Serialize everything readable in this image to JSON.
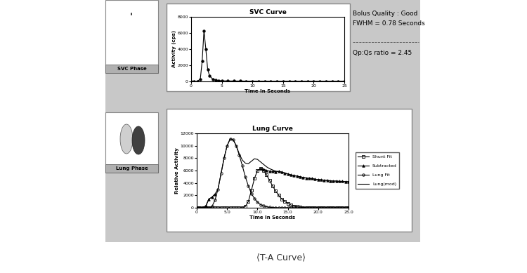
{
  "chart_data": [
    {
      "type": "line",
      "title": "SVC Curve",
      "x_label": "Time In Seconds",
      "y_label": "Activity (cps)",
      "x": [
        0,
        0.5,
        1,
        1.5,
        1.8,
        2.1,
        2.4,
        2.7,
        3,
        3.5,
        4,
        4.5,
        5,
        6,
        7,
        8,
        9,
        10,
        11,
        12,
        13,
        14,
        15,
        16,
        17,
        18,
        19,
        20,
        21,
        22,
        23,
        24,
        25
      ],
      "xlim": [
        0,
        25
      ],
      "xticks": [
        0,
        5,
        10,
        15,
        20,
        25
      ],
      "ylim": [
        0,
        8000
      ],
      "yticks": [
        0,
        2000,
        4000,
        6000,
        8000
      ],
      "grid": false,
      "series": [
        {
          "color": "#000000",
          "marker": "filled_circle",
          "line_style": "solid",
          "values": [
            0,
            0,
            0,
            300,
            2500,
            6300,
            4000,
            1500,
            700,
            300,
            150,
            100,
            80,
            60,
            50,
            50,
            40,
            40,
            40,
            40,
            30,
            30,
            30,
            30,
            30,
            30,
            30,
            30,
            30,
            30,
            30,
            30,
            30
          ]
        }
      ]
    },
    {
      "type": "line",
      "title": "Lung Curve",
      "x_label": "Time In Seconds",
      "y_label": "Relative Activity",
      "x": [
        0,
        0.5,
        1.0,
        1.5,
        2.0,
        2.5,
        3.0,
        3.5,
        4.0,
        4.5,
        5.0,
        5.5,
        6.0,
        6.5,
        7.0,
        7.5,
        8.0,
        8.5,
        9.0,
        9.5,
        10.0,
        10.5,
        11.0,
        11.5,
        12.0,
        12.5,
        13.0,
        13.5,
        14.0,
        14.5,
        15.0,
        15.5,
        16.0,
        16.5,
        17.0,
        17.5,
        18.0,
        18.5,
        19.0,
        19.5,
        20.0,
        20.5,
        21.0,
        21.5,
        22.0,
        22.5,
        23.0,
        23.5,
        24.0,
        24.5,
        25.0
      ],
      "xlim": [
        0,
        25.0
      ],
      "xticks": [
        0,
        5.0,
        10.0,
        15.0,
        20.0,
        25.0
      ],
      "ylim": [
        0,
        12000
      ],
      "yticks": [
        0,
        2000,
        4000,
        6000,
        8000,
        10000,
        12000
      ],
      "grid": false,
      "legend": "center left",
      "series": [
        {
          "name": "Shunt Fit",
          "color": "#000000",
          "marker": "open_square",
          "line_style": "solid",
          "values": [
            0,
            0,
            0,
            0,
            0,
            0,
            0,
            0,
            0,
            0,
            0,
            0,
            0,
            0,
            0,
            0,
            200,
            1000,
            2800,
            4700,
            6000,
            6300,
            6000,
            5300,
            4400,
            3500,
            2700,
            2000,
            1400,
            1000,
            700,
            450,
            280,
            170,
            100,
            50,
            20,
            0,
            0,
            0,
            0,
            0,
            0,
            0,
            0,
            0,
            0,
            0,
            0,
            0,
            0
          ]
        },
        {
          "name": "Subtracted",
          "color": "#000000",
          "marker": "filled_triangle",
          "line_style": "solid",
          "values": [
            0,
            0,
            0,
            300,
            1400,
            1700,
            2200,
            null,
            null,
            null,
            null,
            null,
            null,
            null,
            null,
            null,
            null,
            null,
            null,
            null,
            null,
            6300,
            6200,
            6000,
            5900,
            5850,
            5800,
            5850,
            5750,
            5600,
            5450,
            5300,
            5200,
            5100,
            5000,
            4900,
            4800,
            4750,
            4700,
            4600,
            4550,
            4500,
            4450,
            4400,
            4350,
            4300,
            4300,
            4250,
            4250,
            4200,
            4200
          ]
        },
        {
          "name": "Lung Fit",
          "color": "#000000",
          "marker": "open_circle",
          "line_style": "solid",
          "values": [
            0,
            0,
            0,
            0,
            0,
            200,
            1200,
            3000,
            5500,
            8000,
            10000,
            11100,
            11000,
            10000,
            8500,
            6800,
            5000,
            3500,
            2300,
            1500,
            900,
            500,
            300,
            150,
            80,
            40,
            20,
            0,
            0,
            0,
            0,
            0,
            0,
            0,
            0,
            0,
            0,
            0,
            0,
            0,
            0,
            0,
            0,
            0,
            0,
            0,
            0,
            0,
            0,
            0,
            0
          ]
        },
        {
          "name": "Lung(mod)",
          "color": "#000000",
          "marker": "none",
          "line_style": "solid",
          "values": [
            0,
            0,
            0,
            300,
            1400,
            1700,
            2200,
            3000,
            5500,
            8000,
            10000,
            11100,
            11000,
            10000,
            8700,
            7700,
            7200,
            7100,
            7500,
            7900,
            7800,
            7400,
            7000,
            6600,
            6300,
            6100,
            5900,
            5850,
            5750,
            5600,
            5450,
            5300,
            5200,
            5100,
            5000,
            4900,
            4800,
            4750,
            4700,
            4600,
            4550,
            4500,
            4450,
            4400,
            4350,
            4300,
            4300,
            4250,
            4250,
            4200,
            4200
          ]
        }
      ]
    }
  ],
  "panels": [
    "SVC Phase",
    "Lung Phase"
  ],
  "info": [
    "Bolus Quality : Good",
    "FWHM = 0.78 Seconds"
  ],
  "result": "Qp:Qs ratio = 2.45",
  "caption": "⟨T-A Curve⟩"
}
